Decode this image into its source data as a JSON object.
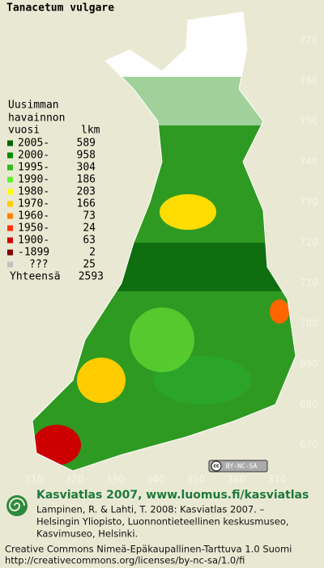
{
  "title": "Tanacetum vulgare",
  "legend": {
    "heading": [
      "Uusimman",
      "havainnon",
      "vuosi"
    ],
    "count_heading": "lkm",
    "rows": [
      {
        "label": "2005-",
        "count": 589,
        "color": "#006400"
      },
      {
        "label": "2000-",
        "count": 958,
        "color": "#008a00"
      },
      {
        "label": "1995-",
        "count": 304,
        "color": "#33bb22"
      },
      {
        "label": "1990-",
        "count": 186,
        "color": "#66ee33"
      },
      {
        "label": "1980-",
        "count": 203,
        "color": "#ffff00"
      },
      {
        "label": "1970-",
        "count": 166,
        "color": "#ffcc00"
      },
      {
        "label": "1960-",
        "count": 73,
        "color": "#ff8000"
      },
      {
        "label": "1950-",
        "count": 24,
        "color": "#ff3300"
      },
      {
        "label": "1900-",
        "count": 63,
        "color": "#cc0000"
      },
      {
        "label": "-1899",
        "count": 2,
        "color": "#800000"
      },
      {
        "label": "???",
        "count": 25,
        "color": "#c0c0c0"
      }
    ],
    "total": {
      "label": "Yhteensä",
      "count": 2593
    }
  },
  "grid": {
    "y_labels": [
      770,
      760,
      750,
      740,
      730,
      720,
      710,
      700,
      690,
      680,
      670
    ],
    "x_labels": [
      310,
      320,
      330,
      340,
      350,
      360,
      370
    ]
  },
  "badge": {
    "icon": "cc",
    "text": "BY-NC-SA"
  },
  "footer": {
    "title": "Kasviatlas 2007, www.luomus.fi/kasviatlas",
    "citation": [
      "Lampinen, R. & Lahti, T. 2008: Kasviatlas 2007. –",
      "Helsingin Yliopisto, Luonnontieteellinen keskusmuseo,",
      "Kasvimuseo, Helsinki."
    ],
    "license": [
      "Creative Commons Nimeä-Epäkaupallinen-Tarttuva 1.0 Suomi",
      "http://creativecommons.org/licenses/by-nc-sa/1.0/fi"
    ]
  }
}
